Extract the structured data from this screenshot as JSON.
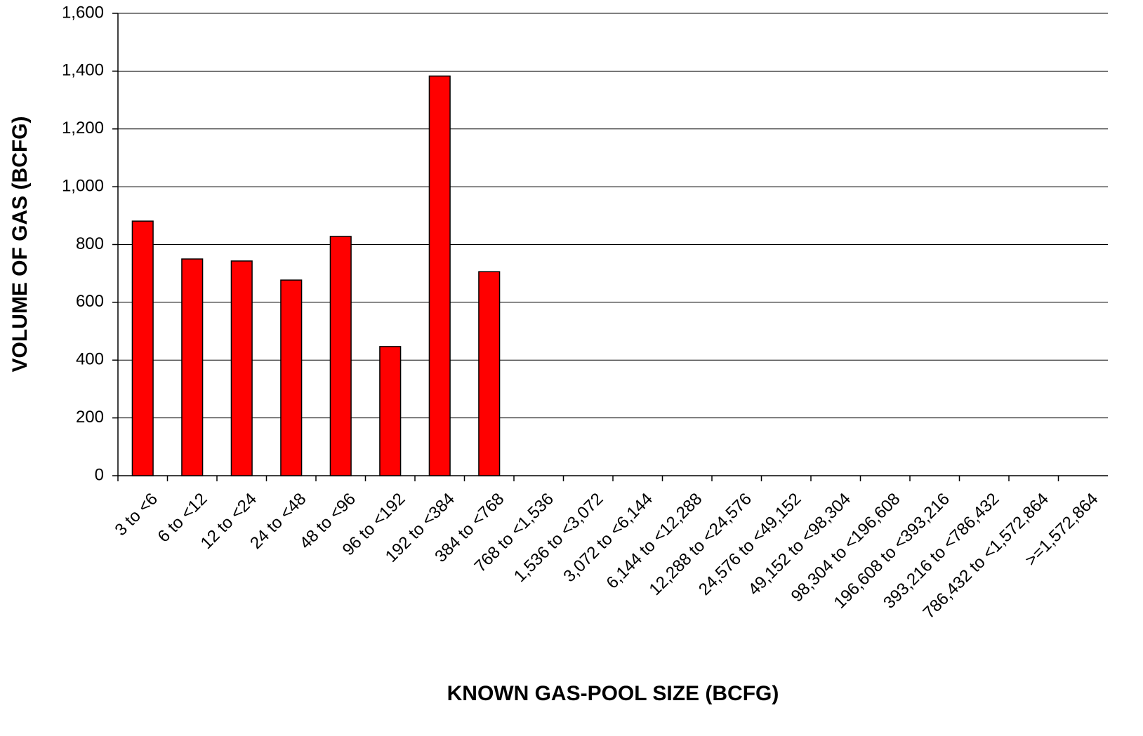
{
  "chart_data": {
    "type": "bar",
    "xlabel": "KNOWN GAS-POOL SIZE (BCFG)",
    "ylabel": "VOLUME OF GAS (BCFG)",
    "categories": [
      "3 to <6",
      "6 to <12",
      "12 to <24",
      "24 to <48",
      "48 to <96",
      "96 to <192",
      "192 to <384",
      "384 to <768",
      "768 to <1,536",
      "1,536 to <3,072",
      "3,072 to <6,144",
      "6,144 to <12,288",
      "12,288 to <24,576",
      "24,576 to <49,152",
      "49,152 to <98,304",
      "98,304 to <196,608",
      "196,608 to <393,216",
      "393,216 to <786,432",
      "786,432 to <1,572,864",
      ">=1,572,864"
    ],
    "values": [
      881,
      750,
      743,
      677,
      828,
      447,
      1383,
      706,
      0,
      0,
      0,
      0,
      0,
      0,
      0,
      0,
      0,
      0,
      0,
      0
    ],
    "color": "#ff0000",
    "ylim": [
      0,
      1600
    ],
    "yticks": [
      0,
      200,
      400,
      600,
      800,
      {
        "value": 1000,
        "label": "1,000"
      },
      {
        "value": 1200,
        "label": "1,200"
      },
      {
        "value": 1400,
        "label": "1,400"
      },
      {
        "value": 1600,
        "label": "1,600"
      }
    ],
    "grid": true
  }
}
